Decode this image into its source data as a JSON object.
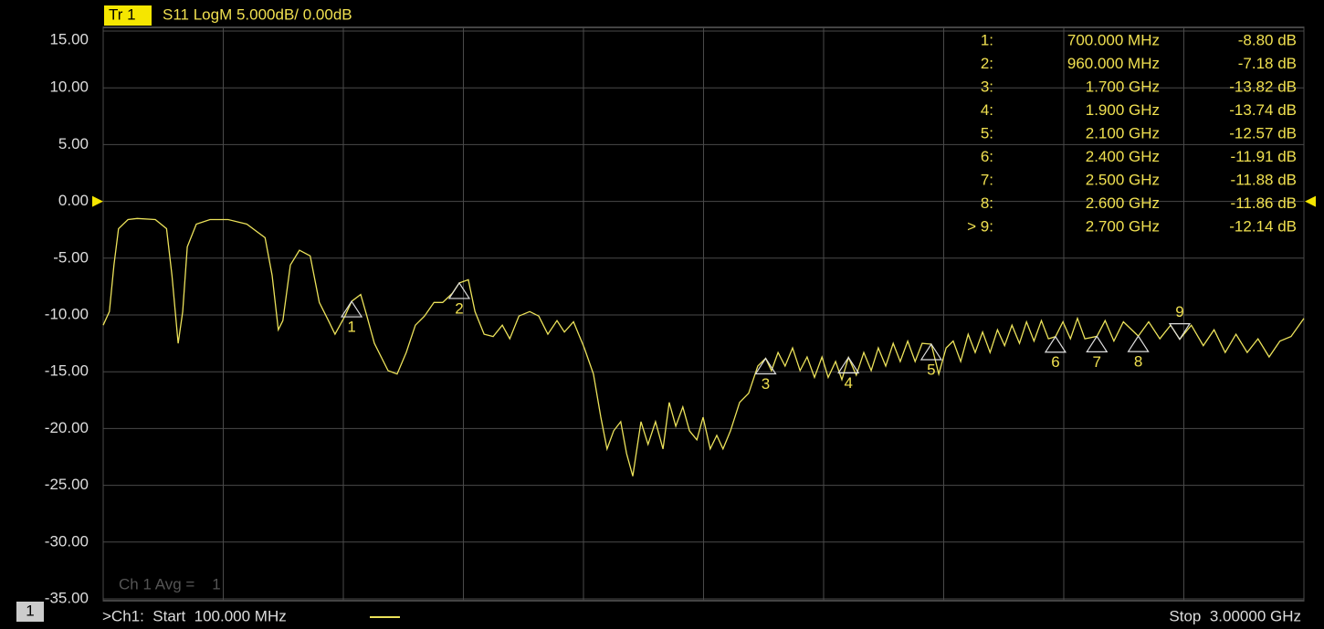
{
  "chart_data": {
    "type": "line",
    "header": {
      "trace": "Tr 1",
      "format": "S11 LogM 5.000dB/ 0.00dB"
    },
    "footer": {
      "channel_box": "1",
      "start": ">Ch1:  Start  100.000 MHz",
      "stop": "Stop  3.00000 GHz"
    },
    "annotation": "Ch 1 Avg =    1",
    "xlim": [
      100,
      3000
    ],
    "xticks": [
      100,
      390,
      680,
      970,
      1260,
      1550,
      1840,
      2130,
      2420,
      2710,
      3000
    ],
    "ylim": [
      -35,
      15
    ],
    "yticks": [
      {
        "value": 15,
        "label": "15.00"
      },
      {
        "value": 10,
        "label": "10.00"
      },
      {
        "value": 5,
        "label": "5.00"
      },
      {
        "value": 0,
        "label": "0.00"
      },
      {
        "value": -5,
        "label": "-5.00"
      },
      {
        "value": -10,
        "label": "-10.00"
      },
      {
        "value": -15,
        "label": "-15.00"
      },
      {
        "value": -20,
        "label": "-20.00"
      },
      {
        "value": -25,
        "label": "-25.00"
      },
      {
        "value": -30,
        "label": "-30.00"
      },
      {
        "value": -35,
        "label": "-35.00"
      }
    ],
    "reference_level": 0,
    "grid": true,
    "series": [
      {
        "color": "#ece25a",
        "x": [
          100,
          115,
          126,
          137,
          160,
          182,
          226,
          253,
          266,
          281,
          292,
          303,
          325,
          358,
          402,
          447,
          491,
          508,
          523,
          534,
          552,
          574,
          600,
          622,
          644,
          660,
          684,
          700,
          722,
          737,
          755,
          788,
          810,
          832,
          854,
          876,
          899,
          920,
          943,
          960,
          982,
          998,
          1020,
          1042,
          1064,
          1082,
          1104,
          1130,
          1152,
          1174,
          1196,
          1214,
          1236,
          1262,
          1284,
          1302,
          1317,
          1333,
          1350,
          1364,
          1379,
          1399,
          1416,
          1434,
          1452,
          1467,
          1483,
          1500,
          1516,
          1534,
          1549,
          1566,
          1582,
          1597,
          1615,
          1637,
          1659,
          1681,
          1700,
          1714,
          1730,
          1747,
          1765,
          1783,
          1800,
          1818,
          1836,
          1851,
          1869,
          1884,
          1900,
          1919,
          1937,
          1955,
          1972,
          1990,
          2008,
          2025,
          2043,
          2061,
          2078,
          2100,
          2118,
          2136,
          2153,
          2171,
          2189,
          2206,
          2224,
          2242,
          2260,
          2277,
          2295,
          2313,
          2330,
          2348,
          2366,
          2383,
          2400,
          2418,
          2436,
          2453,
          2471,
          2500,
          2520,
          2541,
          2564,
          2600,
          2625,
          2652,
          2678,
          2700,
          2728,
          2757,
          2783,
          2810,
          2836,
          2863,
          2889,
          2916,
          2942,
          2969,
          3000
        ],
        "values": [
          -10.9,
          -9.7,
          -5.6,
          -2.4,
          -1.6,
          -1.5,
          -1.6,
          -2.4,
          -6.5,
          -12.5,
          -9.7,
          -4.0,
          -2.0,
          -1.6,
          -1.6,
          -2.0,
          -3.2,
          -6.5,
          -11.3,
          -10.5,
          -5.6,
          -4.3,
          -4.8,
          -8.9,
          -10.5,
          -11.7,
          -10.1,
          -8.8,
          -8.2,
          -10.1,
          -12.5,
          -14.9,
          -15.2,
          -13.3,
          -10.9,
          -10.1,
          -8.9,
          -8.9,
          -8.1,
          -7.18,
          -6.9,
          -9.7,
          -11.7,
          -11.9,
          -10.9,
          -12.1,
          -10.1,
          -9.7,
          -10.1,
          -11.7,
          -10.5,
          -11.5,
          -10.6,
          -12.9,
          -15.2,
          -19.0,
          -21.8,
          -20.2,
          -19.4,
          -22.2,
          -24.2,
          -19.4,
          -21.4,
          -19.4,
          -21.8,
          -17.7,
          -19.8,
          -18.1,
          -20.2,
          -21.0,
          -19.0,
          -21.8,
          -20.6,
          -21.8,
          -20.2,
          -17.7,
          -16.9,
          -14.5,
          -13.82,
          -14.9,
          -13.3,
          -14.5,
          -12.9,
          -14.9,
          -13.7,
          -15.5,
          -13.7,
          -15.5,
          -14.1,
          -15.7,
          -13.74,
          -15.3,
          -13.3,
          -14.9,
          -12.9,
          -14.5,
          -12.5,
          -14.1,
          -12.3,
          -14.1,
          -12.5,
          -12.57,
          -15.2,
          -12.9,
          -12.3,
          -14.1,
          -11.7,
          -13.3,
          -11.5,
          -13.3,
          -11.3,
          -12.7,
          -10.9,
          -12.5,
          -10.6,
          -12.3,
          -10.5,
          -12.1,
          -11.91,
          -10.6,
          -12.1,
          -10.3,
          -12.1,
          -11.88,
          -10.5,
          -12.3,
          -10.6,
          -11.86,
          -10.6,
          -12.1,
          -10.9,
          -12.14,
          -10.9,
          -12.7,
          -11.3,
          -13.3,
          -11.7,
          -13.3,
          -12.1,
          -13.7,
          -12.3,
          -11.9,
          -10.3
        ]
      }
    ],
    "markers": [
      {
        "id": "1",
        "row": "1:",
        "x": 700,
        "freq": "700.000 MHz",
        "value": -8.8,
        "value_label": "-8.80 dB"
      },
      {
        "id": "2",
        "row": "2:",
        "x": 960,
        "freq": "960.000 MHz",
        "value": -7.18,
        "value_label": "-7.18 dB"
      },
      {
        "id": "3",
        "row": "3:",
        "x": 1700,
        "freq": "1.700 GHz",
        "value": -13.82,
        "value_label": "-13.82 dB"
      },
      {
        "id": "4",
        "row": "4:",
        "x": 1900,
        "freq": "1.900 GHz",
        "value": -13.74,
        "value_label": "-13.74 dB"
      },
      {
        "id": "5",
        "row": "5:",
        "x": 2100,
        "freq": "2.100 GHz",
        "value": -12.57,
        "value_label": "-12.57 dB"
      },
      {
        "id": "6",
        "row": "6:",
        "x": 2400,
        "freq": "2.400 GHz",
        "value": -11.91,
        "value_label": "-11.91 dB"
      },
      {
        "id": "7",
        "row": "7:",
        "x": 2500,
        "freq": "2.500 GHz",
        "value": -11.88,
        "value_label": "-11.88 dB"
      },
      {
        "id": "8",
        "row": "8:",
        "x": 2600,
        "freq": "2.600 GHz",
        "value": -11.86,
        "value_label": "-11.86 dB"
      },
      {
        "id": "9",
        "row": "> 9:",
        "x": 2700,
        "freq": "2.700 GHz",
        "value": -12.14,
        "value_label": "-12.14 dB",
        "active": true
      }
    ]
  }
}
